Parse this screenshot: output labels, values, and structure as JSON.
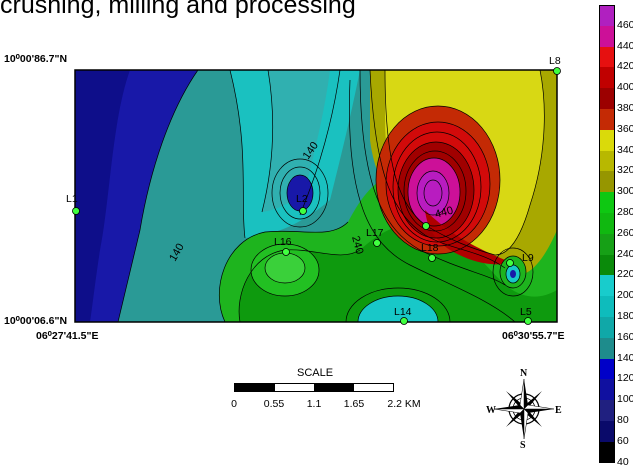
{
  "title": "crushing, milling and processing",
  "coordinates": {
    "top_left_lat": "10⁰00'86.7\"N",
    "bottom_left_lat": "10⁰00'06.6\"N",
    "bottom_left_lon": "06⁰27'41.5\"E",
    "bottom_right_lon": "06⁰30'55.7\"E"
  },
  "stations": [
    "L8",
    "L1",
    "L2",
    "L16",
    "L17",
    "L18",
    "L14",
    "L9",
    "L5"
  ],
  "contour_labels": [
    "140",
    "140",
    "240",
    "440"
  ],
  "scale": {
    "title": "SCALE",
    "ticks": [
      "0",
      "0.55",
      "1.1",
      "1.65",
      "2.2 KM"
    ]
  },
  "compass": {
    "n": "N",
    "s": "S",
    "e": "E",
    "w": "W"
  },
  "legend": {
    "levels": [
      "460",
      "440",
      "420",
      "400",
      "380",
      "360",
      "340",
      "320",
      "300",
      "280",
      "260",
      "240",
      "220",
      "200",
      "180",
      "160",
      "140",
      "120",
      "100",
      "80",
      "60",
      "40"
    ],
    "colors": [
      "#b020c0",
      "#cc1098",
      "#e61010",
      "#c00000",
      "#9c0000",
      "#c42a05",
      "#dada0a",
      "#b8b800",
      "#969600",
      "#0ec812",
      "#10b810",
      "#16a016",
      "#0a8a0a",
      "#18cccc",
      "#0ebcbc",
      "#10a8a8",
      "#1e8c8c",
      "#0000c8",
      "#1010a0",
      "#202080",
      "#0a0a6a",
      "#000000"
    ]
  },
  "colors": {
    "deep_blue": "#1818a8",
    "teal": "#2a9a96",
    "cyan": "#18c8c8",
    "green": "#1eb41e",
    "olive": "#a8a800",
    "yellow": "#d8d814",
    "red": "#d20a0a",
    "magenta": "#b81cc0"
  }
}
